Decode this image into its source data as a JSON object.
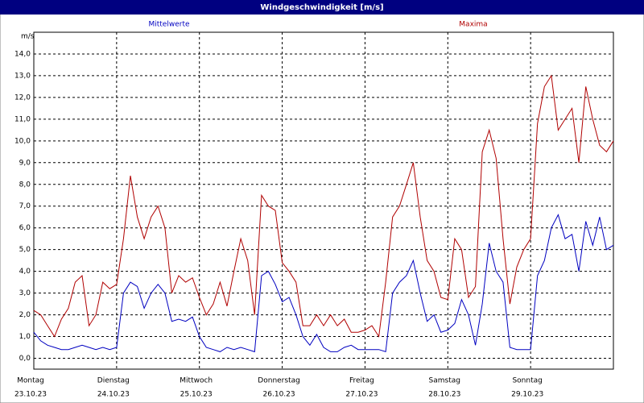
{
  "chart_data": {
    "type": "line",
    "title": "Windgeschwindigkeit [m/s]",
    "y_label": "m/s",
    "x": [
      0,
      2,
      4,
      6,
      8,
      10,
      12,
      14,
      16,
      18,
      20,
      22,
      24,
      26,
      28,
      30,
      32,
      34,
      36,
      38,
      40,
      42,
      44,
      46,
      48,
      50,
      52,
      54,
      56,
      58,
      60,
      62,
      64,
      66,
      68,
      70,
      72,
      74,
      76,
      78,
      80,
      82,
      84,
      86,
      88,
      90,
      92,
      94,
      96,
      98,
      100,
      102,
      104,
      106,
      108,
      110,
      112,
      114,
      116,
      118,
      120,
      122,
      124,
      126,
      128,
      130,
      132,
      134,
      136,
      138,
      140,
      142,
      144,
      146,
      148,
      150,
      152,
      154,
      156,
      158,
      160,
      162,
      164,
      166,
      168
    ],
    "series": [
      {
        "name": "Mittelwerte",
        "color": "#0000c0",
        "values": [
          1.2,
          0.8,
          0.6,
          0.5,
          0.4,
          0.4,
          0.5,
          0.6,
          0.5,
          0.4,
          0.5,
          0.4,
          0.5,
          3.0,
          3.5,
          3.3,
          2.3,
          3.0,
          3.4,
          3.0,
          1.7,
          1.8,
          1.7,
          1.9,
          1.0,
          0.5,
          0.4,
          0.3,
          0.5,
          0.4,
          0.5,
          0.4,
          0.3,
          3.8,
          4.0,
          3.4,
          2.6,
          2.8,
          2.0,
          1.0,
          0.6,
          1.1,
          0.5,
          0.3,
          0.3,
          0.5,
          0.6,
          0.4,
          0.4,
          0.4,
          0.4,
          0.3,
          3.0,
          3.5,
          3.8,
          4.5,
          3.0,
          1.7,
          2.0,
          1.2,
          1.3,
          1.6,
          2.7,
          2.0,
          0.6,
          2.5,
          5.3,
          4.0,
          3.5,
          0.5,
          0.4,
          0.4,
          0.4,
          3.8,
          4.5,
          6.0,
          6.6,
          5.5,
          5.7,
          4.0,
          6.3,
          5.2,
          6.5,
          5.0,
          5.2
        ]
      },
      {
        "name": "Maxima",
        "color": "#b00000",
        "values": [
          2.2,
          2.0,
          1.5,
          1.0,
          1.8,
          2.3,
          3.5,
          3.8,
          1.5,
          2.0,
          3.5,
          3.2,
          3.4,
          5.5,
          8.4,
          6.5,
          5.5,
          6.5,
          7.0,
          6.0,
          3.0,
          3.8,
          3.5,
          3.7,
          2.8,
          2.0,
          2.5,
          3.5,
          2.4,
          4.0,
          5.5,
          4.5,
          2.0,
          7.5,
          7.0,
          6.8,
          4.4,
          4.0,
          3.5,
          1.5,
          1.5,
          2.0,
          1.5,
          2.0,
          1.5,
          1.8,
          1.2,
          1.2,
          1.3,
          1.5,
          1.0,
          3.5,
          6.5,
          7.0,
          8.0,
          9.0,
          6.5,
          4.5,
          4.0,
          2.8,
          2.7,
          5.5,
          5.0,
          2.8,
          3.3,
          9.5,
          10.5,
          9.2,
          5.5,
          2.5,
          4.2,
          5.0,
          5.5,
          10.8,
          12.5,
          13.0,
          10.5,
          11.0,
          11.5,
          9.0,
          12.5,
          11.0,
          9.8,
          9.5,
          10.0
        ]
      }
    ],
    "xlim": [
      0,
      168
    ],
    "xticks": [
      {
        "value": 0,
        "label": "Montag"
      },
      {
        "value": 24,
        "label": "Dienstag"
      },
      {
        "value": 48,
        "label": "Mittwoch"
      },
      {
        "value": 72,
        "label": "Donnerstag"
      },
      {
        "value": 96,
        "label": "Freitag"
      },
      {
        "value": 120,
        "label": "Samstag"
      },
      {
        "value": 144,
        "label": "Sonntag"
      }
    ],
    "xtick_dates": [
      "23.10.23",
      "24.10.23",
      "25.10.23",
      "26.10.23",
      "27.10.23",
      "28.10.23",
      "29.10.23"
    ],
    "ylim": [
      -0.5,
      15
    ],
    "yticks": [
      {
        "value": 0,
        "label": "0,0"
      },
      {
        "value": 1,
        "label": "1,0"
      },
      {
        "value": 2,
        "label": "2,0"
      },
      {
        "value": 3,
        "label": "3,0"
      },
      {
        "value": 4,
        "label": "4,0"
      },
      {
        "value": 5,
        "label": "5,0"
      },
      {
        "value": 6,
        "label": "6,0"
      },
      {
        "value": 7,
        "label": "7,0"
      },
      {
        "value": 8,
        "label": "8,0"
      },
      {
        "value": 9,
        "label": "9,0"
      },
      {
        "value": 10,
        "label": "10,0"
      },
      {
        "value": 11,
        "label": "11,0"
      },
      {
        "value": 12,
        "label": "12,0"
      },
      {
        "value": 13,
        "label": "13,0"
      },
      {
        "value": 14,
        "label": "14,0"
      }
    ],
    "grid": true
  }
}
